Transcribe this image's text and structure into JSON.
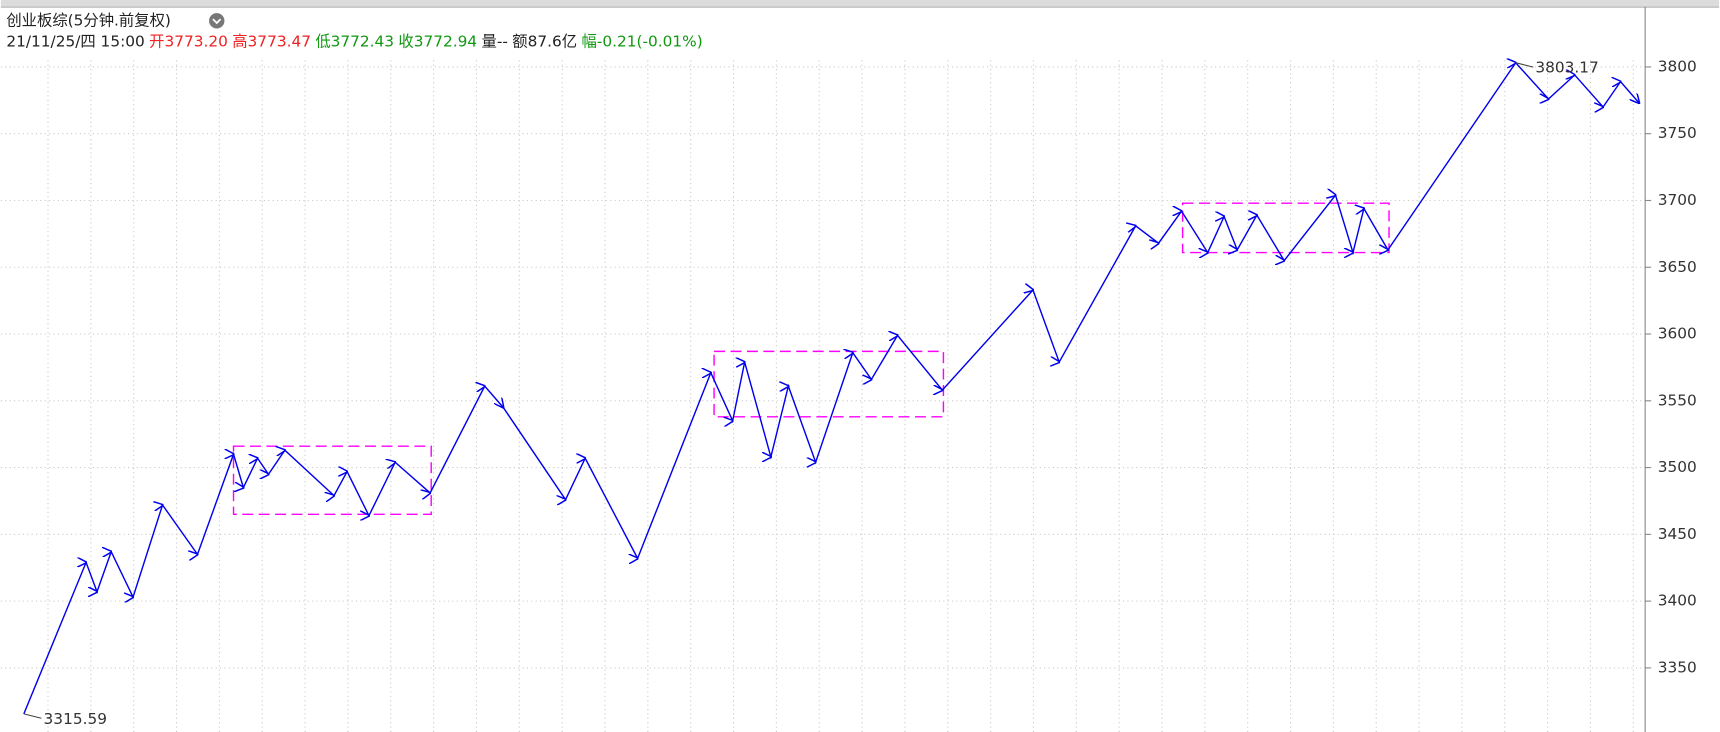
{
  "chart_data": {
    "type": "line",
    "title": "创业板综(5分钟.前复权)",
    "info": [
      {
        "text": "21/11/25/四 15:00",
        "color": "#222222"
      },
      {
        "text": "开3773.20",
        "color": "#ee2222"
      },
      {
        "text": "高3773.47",
        "color": "#ee2222"
      },
      {
        "text": "低3772.43",
        "color": "#119911"
      },
      {
        "text": "收3772.94",
        "color": "#119911"
      },
      {
        "text": "量--",
        "color": "#222222"
      },
      {
        "text": "额87.6亿",
        "color": "#222222"
      },
      {
        "text": "幅-0.21(-0.01%)",
        "color": "#119911"
      }
    ],
    "xlim": [
      0,
      1495
    ],
    "ylim": [
      3302,
      3805
    ],
    "yticks": [
      3350,
      3400,
      3450,
      3500,
      3550,
      3600,
      3650,
      3700,
      3750,
      3800
    ],
    "grid": true,
    "series": [
      {
        "color": "#0000ee",
        "x": [
          16,
          73,
          83,
          96,
          116,
          143,
          175,
          208,
          217,
          230,
          240,
          255,
          300,
          312,
          332,
          356,
          388,
          438,
          455,
          512,
          530,
          578,
          645,
          665,
          676,
          700,
          716,
          741,
          775,
          792,
          816,
          857,
          940,
          964,
          1034,
          1055,
          1076,
          1100,
          1115,
          1127,
          1145,
          1170,
          1217,
          1233,
          1243,
          1265,
          1382,
          1412,
          1436,
          1462,
          1478,
          1495
        ],
        "values": [
          3315.59,
          3429,
          3407,
          3437,
          3403,
          3472,
          3435,
          3510,
          3485,
          3507,
          3495,
          3513,
          3479,
          3497,
          3464,
          3504,
          3481,
          3561,
          3545,
          3476,
          3507,
          3432,
          3571,
          3535,
          3579,
          3508,
          3561,
          3504,
          3586,
          3566,
          3599,
          3558,
          3633,
          3579,
          3681,
          3668,
          3692,
          3661,
          3688,
          3663,
          3689,
          3655,
          3704,
          3661,
          3694,
          3663,
          3803.17,
          3776,
          3794,
          3770,
          3789,
          3773
        ]
      }
    ],
    "boxes": [
      {
        "x": [
          208,
          389
        ],
        "y": [
          3465,
          3516
        ],
        "color": "#ff00ff"
      },
      {
        "x": [
          648,
          858
        ],
        "y": [
          3538,
          3587
        ],
        "color": "#ff00ff"
      },
      {
        "x": [
          1077,
          1266
        ],
        "y": [
          3661,
          3698
        ],
        "color": "#ff00ff"
      }
    ]
  }
}
